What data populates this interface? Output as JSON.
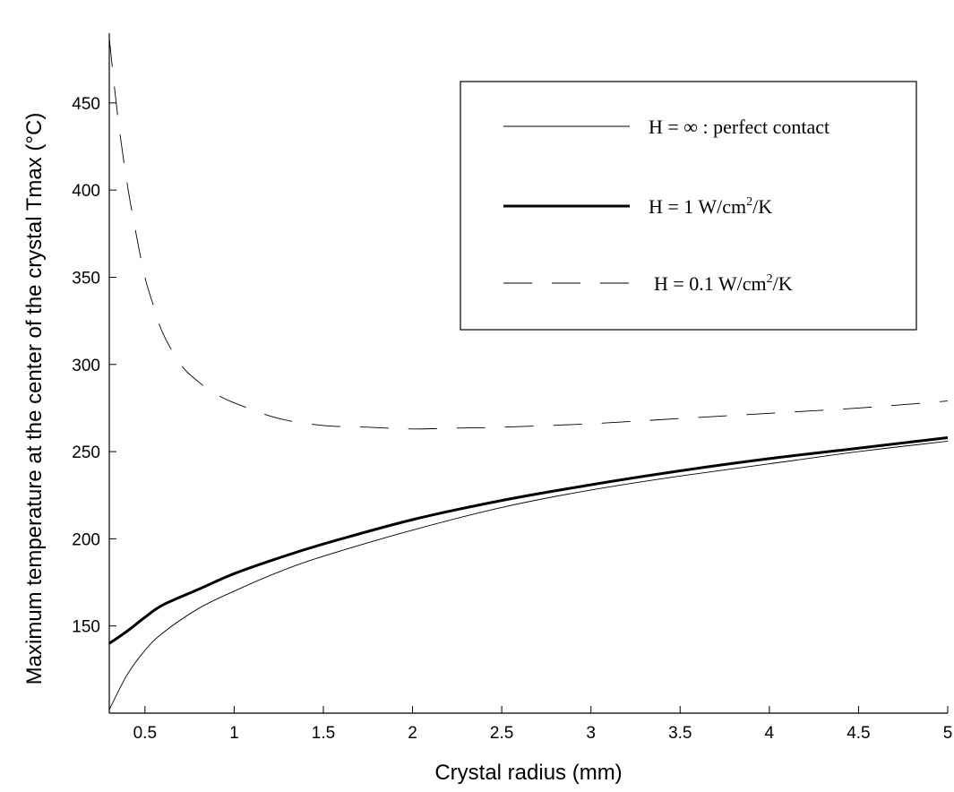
{
  "chart_data": {
    "type": "line",
    "title": "",
    "xlabel": "Crystal radius (mm)",
    "ylabel": "Maximum temperature at the center of the crystal Tmax (°C)",
    "xlim": [
      0.3,
      5
    ],
    "ylim": [
      100,
      490
    ],
    "xticks": [
      0.5,
      1,
      1.5,
      2,
      2.5,
      3,
      3.5,
      4,
      4.5,
      5
    ],
    "xtick_labels": [
      "0.5",
      "1",
      "1.5",
      "2",
      "2.5",
      "3",
      "3.5",
      "4",
      "4.5",
      "5"
    ],
    "yticks": [
      150,
      200,
      250,
      300,
      350,
      400,
      450
    ],
    "ytick_labels": [
      "150",
      "200",
      "250",
      "300",
      "350",
      "400",
      "450"
    ],
    "grid": false,
    "legend_position": "top-right",
    "series": [
      {
        "name": "H = ∞ : perfect contact",
        "legend_prefix": "H = ",
        "legend_symbol": "∞",
        "legend_suffix": " : perfect contact",
        "style": "thin-solid",
        "color": "#000000",
        "x": [
          0.3,
          0.4,
          0.5,
          0.6,
          0.8,
          1.0,
          1.25,
          1.5,
          2.0,
          2.5,
          3.0,
          3.5,
          4.0,
          4.5,
          5.0
        ],
        "y": [
          102,
          122,
          136,
          146,
          160,
          170,
          181,
          190,
          205,
          218,
          228,
          236,
          243,
          250,
          256
        ]
      },
      {
        "name": "H = 1 W/cm2/K",
        "legend_prefix": "H = 1 W/cm",
        "legend_sup": "2",
        "legend_suffix": "/K",
        "style": "thick-solid",
        "color": "#000000",
        "x": [
          0.3,
          0.4,
          0.5,
          0.6,
          0.8,
          1.0,
          1.25,
          1.5,
          2.0,
          2.5,
          3.0,
          3.5,
          4.0,
          4.5,
          5.0
        ],
        "y": [
          140,
          147,
          155,
          162,
          171,
          180,
          189,
          197,
          211,
          222,
          231,
          239,
          246,
          252,
          258
        ]
      },
      {
        "name": "H = 0.1 W/cm2/K",
        "legend_prefix": "H = 0.1 W/cm",
        "legend_sup": "2",
        "legend_suffix": "/K",
        "style": "dashed",
        "color": "#000000",
        "x": [
          0.3,
          0.35,
          0.4,
          0.45,
          0.5,
          0.55,
          0.6,
          0.7,
          0.8,
          0.9,
          1.0,
          1.25,
          1.5,
          1.75,
          2.0,
          2.25,
          2.5,
          3.0,
          3.5,
          4.0,
          4.5,
          5.0
        ],
        "y": [
          487,
          440,
          404,
          375,
          350,
          333,
          318,
          300,
          290,
          283,
          278,
          269,
          265,
          264,
          263,
          263.5,
          264,
          266,
          269,
          272,
          275,
          279
        ]
      }
    ]
  }
}
